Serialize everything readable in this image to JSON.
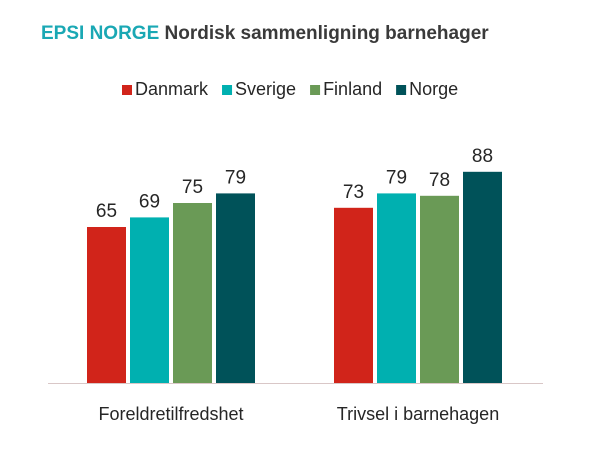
{
  "title": {
    "brand": "EPSI NORGE",
    "main": "Nordisk sammenligning barnehager"
  },
  "chart_data": {
    "type": "bar",
    "categories": [
      "Foreldretilfredshet",
      "Trivsel i barnehagen"
    ],
    "series": [
      {
        "name": "Danmark",
        "color": "#d1241a",
        "values": [
          65,
          73
        ]
      },
      {
        "name": "Sverige",
        "color": "#00b0b0",
        "values": [
          69,
          79
        ]
      },
      {
        "name": "Finland",
        "color": "#6a9a56",
        "values": [
          75,
          78
        ]
      },
      {
        "name": "Norge",
        "color": "#005259",
        "values": [
          79,
          88
        ]
      }
    ],
    "legend_position": "top",
    "grid": false,
    "data_labels": true,
    "ylim": [
      0,
      100
    ]
  }
}
